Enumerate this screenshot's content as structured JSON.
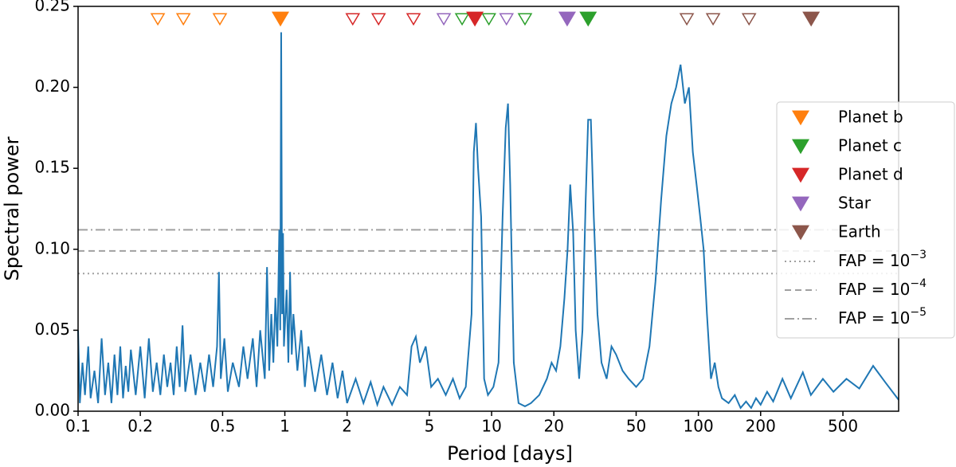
{
  "chart_data": {
    "type": "line",
    "xlabel": "Period [days]",
    "ylabel": "Spectral power",
    "xscale": "log",
    "xlim": [
      0.1,
      930
    ],
    "ylim": [
      0,
      0.25
    ],
    "xticks": [
      0.1,
      0.2,
      0.5,
      1,
      2,
      5,
      10,
      20,
      50,
      100,
      200,
      500
    ],
    "yticks": [
      {
        "value": 0,
        "label": "0.00"
      },
      {
        "value": 0.05,
        "label": "0.05"
      },
      {
        "value": 0.1,
        "label": "0.10"
      },
      {
        "value": 0.15,
        "label": "0.15"
      },
      {
        "value": 0.2,
        "label": "0.20"
      },
      {
        "value": 0.25,
        "label": "0.25"
      }
    ],
    "color": "#1f77b4",
    "legend_position": "right",
    "x": [
      0.1,
      0.102,
      0.105,
      0.108,
      0.112,
      0.115,
      0.12,
      0.125,
      0.13,
      0.135,
      0.14,
      0.145,
      0.15,
      0.155,
      0.16,
      0.165,
      0.17,
      0.175,
      0.18,
      0.19,
      0.2,
      0.21,
      0.22,
      0.23,
      0.24,
      0.25,
      0.26,
      0.27,
      0.28,
      0.29,
      0.3,
      0.31,
      0.32,
      0.33,
      0.35,
      0.37,
      0.39,
      0.41,
      0.43,
      0.45,
      0.47,
      0.48,
      0.49,
      0.51,
      0.53,
      0.56,
      0.6,
      0.63,
      0.66,
      0.7,
      0.73,
      0.76,
      0.8,
      0.82,
      0.84,
      0.86,
      0.88,
      0.9,
      0.92,
      0.94,
      0.95,
      0.96,
      0.97,
      0.98,
      0.99,
      1.02,
      1.04,
      1.06,
      1.08,
      1.1,
      1.15,
      1.2,
      1.25,
      1.3,
      1.4,
      1.5,
      1.6,
      1.7,
      1.8,
      1.9,
      2.0,
      2.2,
      2.4,
      2.6,
      2.8,
      3.0,
      3.3,
      3.6,
      3.9,
      4.1,
      4.3,
      4.5,
      4.8,
      5.1,
      5.5,
      6.0,
      6.5,
      7.0,
      7.5,
      8.0,
      8.2,
      8.4,
      8.6,
      8.9,
      9.2,
      9.6,
      10.2,
      10.8,
      11.3,
      11.7,
      12.0,
      12.3,
      12.8,
      13.5,
      14.5,
      15.5,
      17,
      18.5,
      19.5,
      20.5,
      21.5,
      22.5,
      23.3,
      24.0,
      24.8,
      25.5,
      26.5,
      27.5,
      28.5,
      29.3,
      30.2,
      31.2,
      32.5,
      34,
      36,
      38,
      40,
      43,
      46,
      50,
      54,
      58,
      62,
      66,
      70,
      74,
      78,
      82,
      86,
      90,
      94,
      98,
      102,
      106,
      110,
      115,
      120,
      125,
      130,
      140,
      150,
      160,
      170,
      180,
      190,
      200,
      215,
      230,
      255,
      280,
      320,
      350,
      400,
      450,
      520,
      600,
      700,
      800,
      930
    ],
    "values": [
      0.05,
      0.005,
      0.03,
      0.01,
      0.04,
      0.008,
      0.025,
      0.005,
      0.045,
      0.01,
      0.03,
      0.005,
      0.035,
      0.01,
      0.04,
      0.008,
      0.028,
      0.012,
      0.038,
      0.01,
      0.04,
      0.008,
      0.045,
      0.012,
      0.03,
      0.01,
      0.035,
      0.015,
      0.03,
      0.01,
      0.04,
      0.015,
      0.053,
      0.012,
      0.035,
      0.01,
      0.03,
      0.012,
      0.035,
      0.015,
      0.04,
      0.086,
      0.02,
      0.045,
      0.012,
      0.03,
      0.015,
      0.04,
      0.02,
      0.045,
      0.015,
      0.05,
      0.02,
      0.089,
      0.025,
      0.06,
      0.03,
      0.07,
      0.04,
      0.112,
      0.05,
      0.234,
      0.06,
      0.11,
      0.04,
      0.075,
      0.03,
      0.086,
      0.035,
      0.06,
      0.025,
      0.05,
      0.015,
      0.04,
      0.012,
      0.035,
      0.01,
      0.03,
      0.008,
      0.025,
      0.005,
      0.02,
      0.005,
      0.018,
      0.004,
      0.015,
      0.004,
      0.015,
      0.01,
      0.04,
      0.046,
      0.03,
      0.04,
      0.015,
      0.02,
      0.01,
      0.02,
      0.008,
      0.015,
      0.06,
      0.16,
      0.178,
      0.15,
      0.12,
      0.02,
      0.01,
      0.015,
      0.03,
      0.12,
      0.175,
      0.19,
      0.14,
      0.03,
      0.005,
      0.003,
      0.005,
      0.01,
      0.02,
      0.03,
      0.025,
      0.04,
      0.07,
      0.1,
      0.14,
      0.11,
      0.05,
      0.02,
      0.05,
      0.13,
      0.18,
      0.18,
      0.12,
      0.06,
      0.03,
      0.02,
      0.04,
      0.035,
      0.025,
      0.02,
      0.015,
      0.02,
      0.04,
      0.08,
      0.13,
      0.17,
      0.19,
      0.2,
      0.214,
      0.19,
      0.2,
      0.16,
      0.14,
      0.12,
      0.1,
      0.06,
      0.02,
      0.03,
      0.015,
      0.008,
      0.005,
      0.01,
      0.002,
      0.006,
      0.002,
      0.008,
      0.004,
      0.012,
      0.006,
      0.02,
      0.008,
      0.024,
      0.01,
      0.02,
      0.012,
      0.02,
      0.014,
      0.028,
      0.018,
      0.007
    ],
    "markers": [
      {
        "name": "Planet b",
        "color": "#ff7f0e",
        "period": 0.952,
        "aliases": [
          0.243,
          0.323,
          0.485
        ]
      },
      {
        "name": "Planet c",
        "color": "#2ca02c",
        "period": 29.3,
        "aliases": [
          7.2,
          9.7,
          14.5
        ]
      },
      {
        "name": "Planet d",
        "color": "#d62728",
        "period": 8.3,
        "aliases": [
          2.13,
          2.84,
          4.19
        ]
      },
      {
        "name": "Star",
        "color": "#9467bd",
        "period": 23.2,
        "aliases": [
          5.87,
          11.8
        ]
      },
      {
        "name": "Earth",
        "color": "#8c564b",
        "period": 351,
        "aliases": [
          87.9,
          117.8,
          175.8
        ]
      }
    ],
    "fap_levels": [
      {
        "label": "FAP = 10",
        "exponent": "−3",
        "value": 0.085,
        "style": "dotted"
      },
      {
        "label": "FAP = 10",
        "exponent": "−4",
        "value": 0.099,
        "style": "dashed"
      },
      {
        "label": "FAP = 10",
        "exponent": "−5",
        "value": 0.112,
        "style": "dashdot"
      }
    ]
  }
}
